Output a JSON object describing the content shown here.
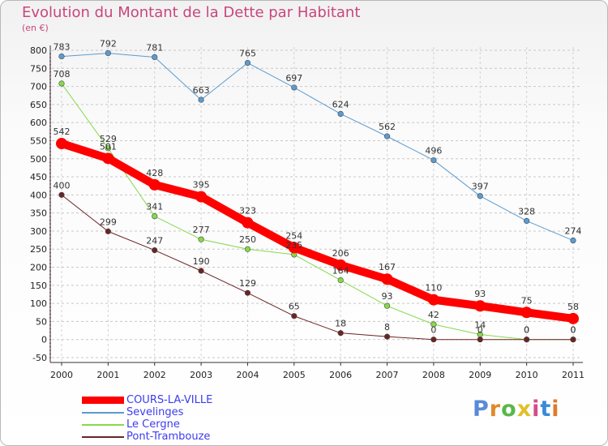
{
  "chart_data": {
    "type": "line",
    "title": "Evolution du Montant de la Dette par Habitant",
    "subtitle": "(en €)",
    "xlabel": "",
    "ylabel": "(en €)",
    "ylim": [
      -50,
      800
    ],
    "y_ticks": [
      -50,
      0,
      50,
      100,
      150,
      200,
      250,
      300,
      350,
      400,
      450,
      500,
      550,
      600,
      650,
      700,
      750,
      800
    ],
    "x": [
      "2000",
      "2001",
      "2002",
      "2003",
      "2004",
      "2005",
      "2006",
      "2007",
      "2008",
      "2009",
      "2010",
      "2011"
    ],
    "legend_position": "bottom-left",
    "series": [
      {
        "name": "Sevelinges",
        "color": "#5b9bd1",
        "values": [
          783,
          792,
          781,
          663,
          765,
          697,
          624,
          562,
          496,
          397,
          328,
          274
        ]
      },
      {
        "name": "Le Cergne",
        "color": "#86d94a",
        "values": [
          708,
          529,
          341,
          277,
          250,
          235,
          164,
          93,
          42,
          14,
          0,
          0
        ]
      },
      {
        "name": "Pont-Trambouze",
        "color": "#6b2424",
        "values": [
          400,
          299,
          247,
          190,
          129,
          65,
          18,
          8,
          0,
          0,
          0,
          0
        ]
      },
      {
        "name": "COURS-LA-VILLE",
        "color": "#ff0000",
        "values": [
          542,
          501,
          428,
          395,
          323,
          254,
          206,
          167,
          110,
          93,
          75,
          58
        ]
      }
    ]
  },
  "legend": {
    "items": [
      {
        "label": "COURS-LA-VILLE",
        "color": "#ff0000"
      },
      {
        "label": "Sevelinges",
        "color": "#5b9bd1"
      },
      {
        "label": "Le Cergne",
        "color": "#86d94a"
      },
      {
        "label": "Pont-Trambouze",
        "color": "#6b2424"
      }
    ]
  },
  "logo": {
    "letters": [
      "P",
      "r",
      "o",
      "x",
      "i",
      "t",
      "i"
    ],
    "colors": [
      "#5a8ad8",
      "#e08a2a",
      "#58b84a",
      "#e0c02a",
      "#d84a8a",
      "#3a8ad8",
      "#e07a2a"
    ]
  }
}
